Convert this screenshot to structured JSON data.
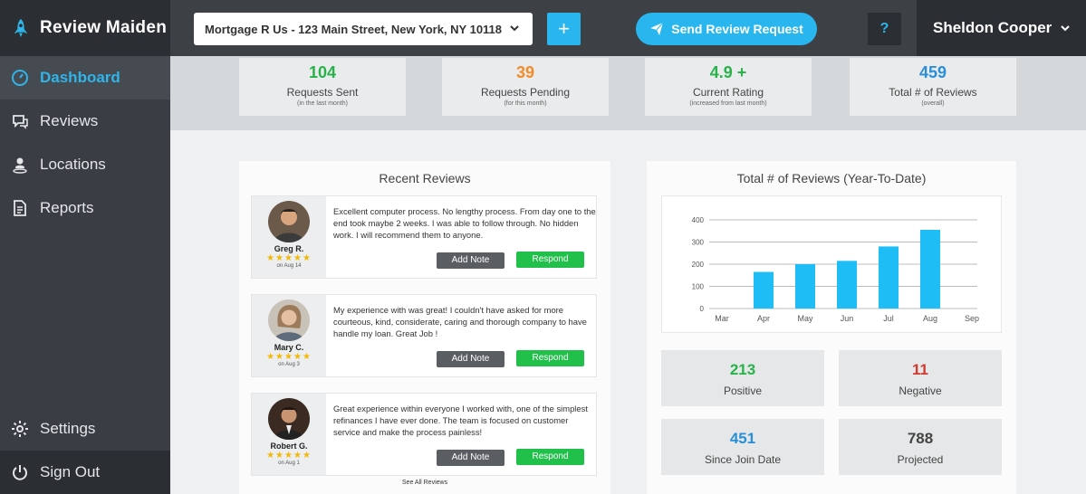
{
  "brand": {
    "name": "Review Maiden"
  },
  "sidebar": {
    "items": [
      {
        "label": "Dashboard"
      },
      {
        "label": "Reviews"
      },
      {
        "label": "Locations"
      },
      {
        "label": "Reports"
      }
    ],
    "settings_label": "Settings",
    "signout_label": "Sign Out"
  },
  "topbar": {
    "location": "Mortgage R Us - 123 Main Street, New York, NY 10118",
    "add_label": "+",
    "send_label": "Send Review Request",
    "help_label": "?",
    "user_name": "Sheldon Cooper"
  },
  "stats": [
    {
      "value": "104",
      "label": "Requests Sent",
      "sub": "(in the last month)",
      "color": "#27b24a"
    },
    {
      "value": "39",
      "label": "Requests Pending",
      "sub": "(for this month)",
      "color": "#f28c28"
    },
    {
      "value": "4.9 +",
      "label": "Current Rating",
      "sub": "(increased from last month)",
      "color": "#27b24a"
    },
    {
      "value": "459",
      "label": "Total # of Reviews",
      "sub": "(overall)",
      "color": "#2a8fd6"
    }
  ],
  "reviews": {
    "title": "Recent Reviews",
    "items": [
      {
        "name": "Greg R.",
        "stars": "★★★★★",
        "date": "on Aug 14",
        "text": "Excellent computer process. No lengthy process. From day one to the end took maybe 2 weeks. I was able to follow through. No hidden work. I will recommend them to anyone."
      },
      {
        "name": "Mary C.",
        "stars": "★★★★★",
        "date": "on Aug 3",
        "text": "My experience with was great! I couldn't have asked for more courteous, kind, considerate, caring and thorough company to have handle my loan. Great Job !"
      },
      {
        "name": "Robert G.",
        "stars": "★★★★★",
        "date": "on Aug 1",
        "text": "Great experience within everyone I worked with, one of the simplest refinances I have ever done. The team is focused on customer service and make the process painless!"
      }
    ],
    "note_label": "Add Note",
    "respond_label": "Respond",
    "see_all": "See All Reviews"
  },
  "chart_panel": {
    "title": "Total # of Reviews (Year-To-Date)"
  },
  "chart_data": {
    "type": "bar",
    "title": "Total # of Reviews (Year-To-Date)",
    "categories": [
      "Mar",
      "Apr",
      "May",
      "Jun",
      "Jul",
      "Aug",
      "Sep"
    ],
    "values": [
      0,
      165,
      200,
      215,
      280,
      355,
      0
    ],
    "ylim": [
      0,
      400
    ],
    "yticks": [
      0,
      100,
      200,
      300,
      400
    ],
    "grid": true,
    "color": "#1ebdf5"
  },
  "metrics": [
    {
      "value": "213",
      "label": "Positive",
      "color": "#27b24a"
    },
    {
      "value": "11",
      "label": "Negative",
      "color": "#d23a2e"
    },
    {
      "value": "451",
      "label": "Since Join Date",
      "color": "#2a8fd6"
    },
    {
      "value": "788",
      "label": "Projected",
      "color": "#444444"
    }
  ]
}
